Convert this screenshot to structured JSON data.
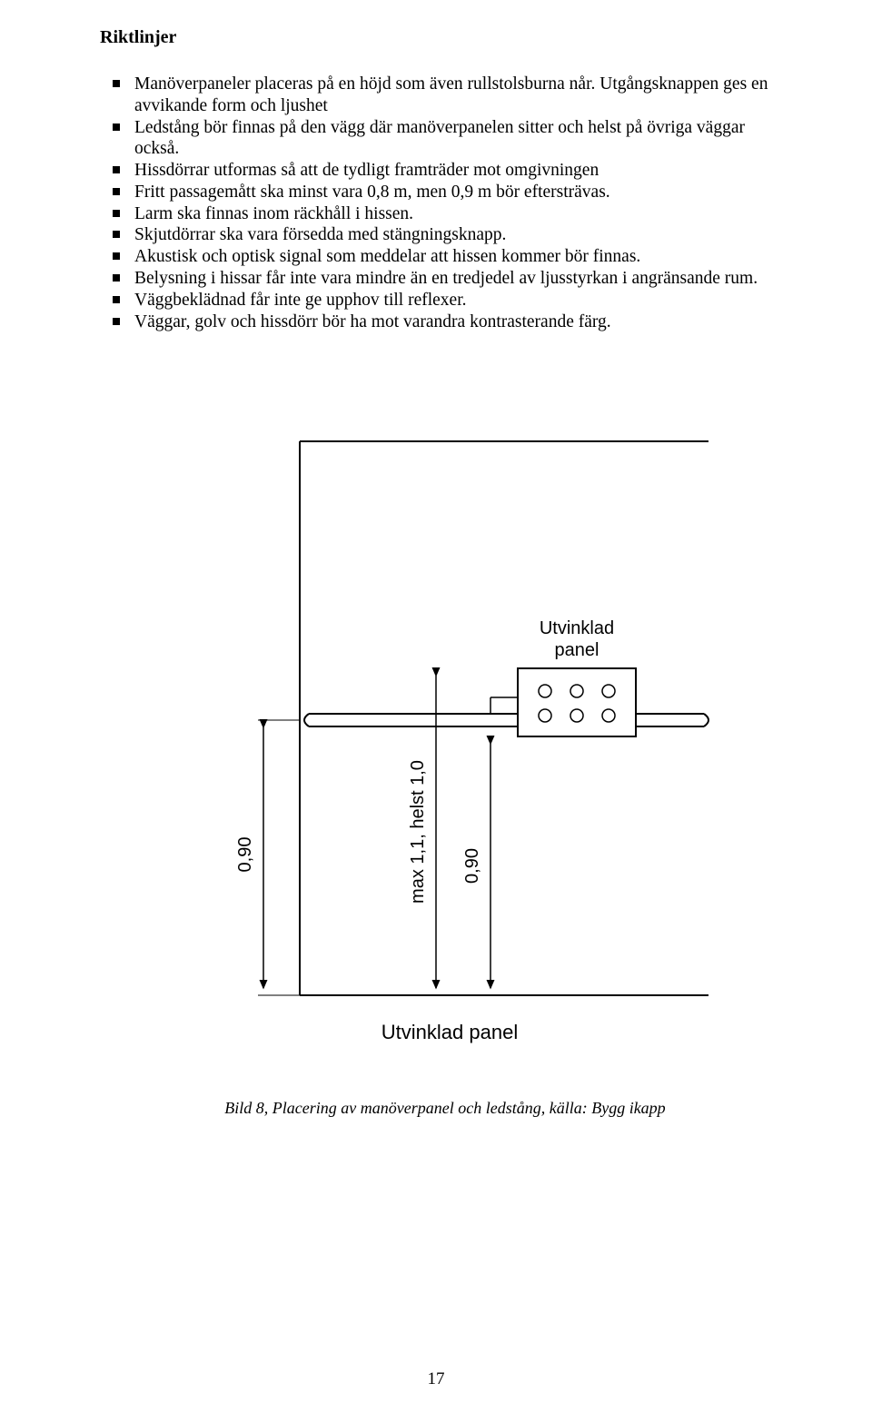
{
  "heading": "Riktlinjer",
  "bullets": [
    "Manöverpaneler placeras på en höjd som även rullstolsburna når. Utgångsknappen ges en avvikande form och ljushet",
    "Ledstång bör finnas på den vägg där manöverpanelen sitter och helst på övriga väggar också.",
    "Hissdörrar utformas så att de tydligt framträder mot omgivningen",
    "Fritt passagemått ska minst vara 0,8 m, men 0,9 m bör eftersträvas.",
    "Larm ska finnas inom räckhåll i hissen.",
    "Skjutdörrar ska vara försedda med stängningsknapp.",
    "Akustisk och optisk signal som meddelar att hissen kommer bör finnas.",
    "Belysning i hissar får inte vara mindre än en tredjedel av ljusstyrkan i angränsande rum.",
    "Väggbeklädnad får inte ge upphov till reflexer.",
    "Väggar, golv och hissdörr bör ha mot varandra kontrasterande färg."
  ],
  "diagram": {
    "label_panel_top": "Utvinklad",
    "label_panel_top2": "panel",
    "label_bottom": "Utvinklad panel",
    "dim_left": "0,90",
    "dim_mid": "max 1,1, helst 1,0",
    "dim_right": "0,90",
    "stroke": "#000000",
    "stroke_width": 2,
    "font_family": "Arial Narrow, Helvetica, sans-serif",
    "label_fontsize": 20,
    "dim_fontsize": 20
  },
  "caption": "Bild 8, Placering av manöverpanel och ledstång, källa: Bygg ikapp",
  "page_number": "17"
}
